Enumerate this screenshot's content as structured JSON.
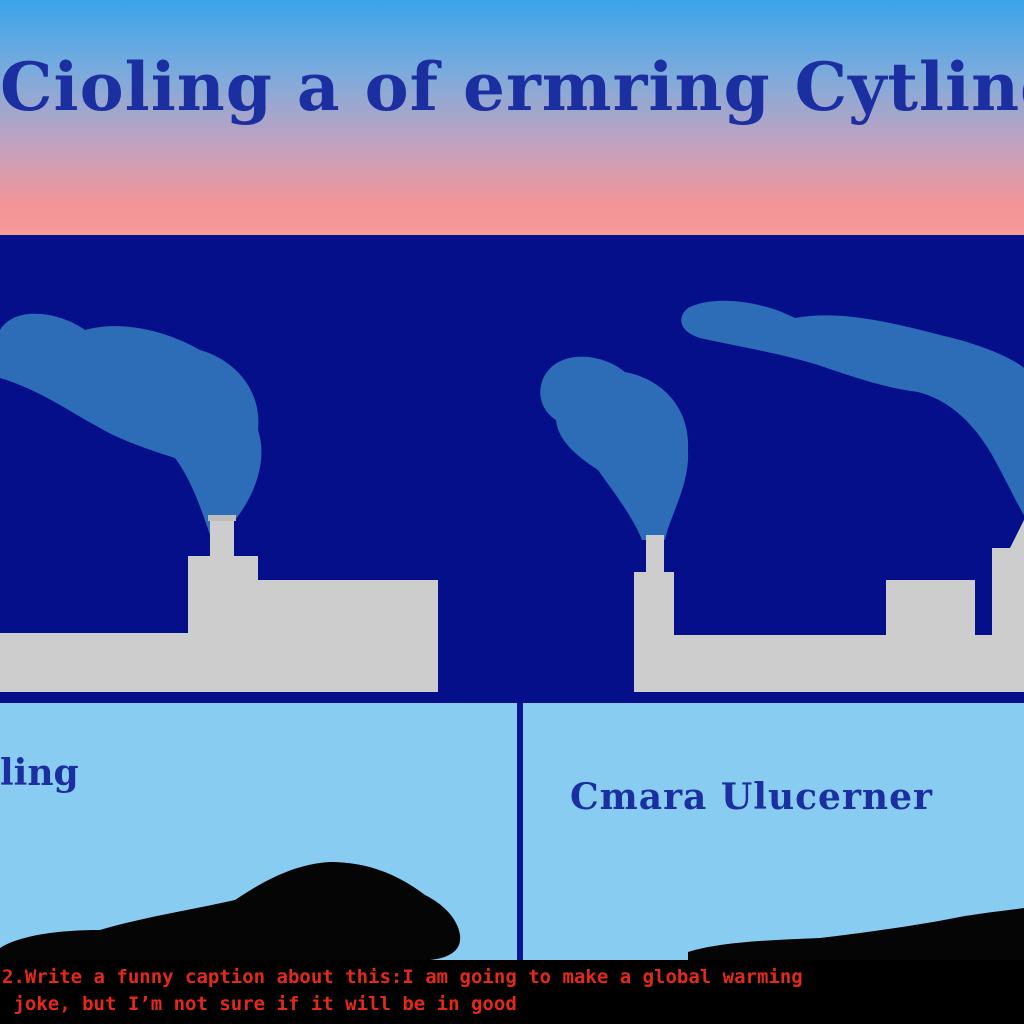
{
  "header": {
    "title": "Cioling a of ermring Cytling"
  },
  "panels": {
    "left_label": "ling",
    "right_label": "Cmara Ulucerner"
  },
  "caption": {
    "line1": "2.Write a funny caption about this:I am going to make a global warming",
    "line2": " joke, but I’m not sure if it will be in good"
  },
  "colors": {
    "title_text": "#1c2fa0",
    "band": "#060f8a",
    "smoke": "#2d6db8",
    "factory": "#cdcdcd",
    "panel": "#88cdf1",
    "caption_text": "#e32a1a"
  }
}
